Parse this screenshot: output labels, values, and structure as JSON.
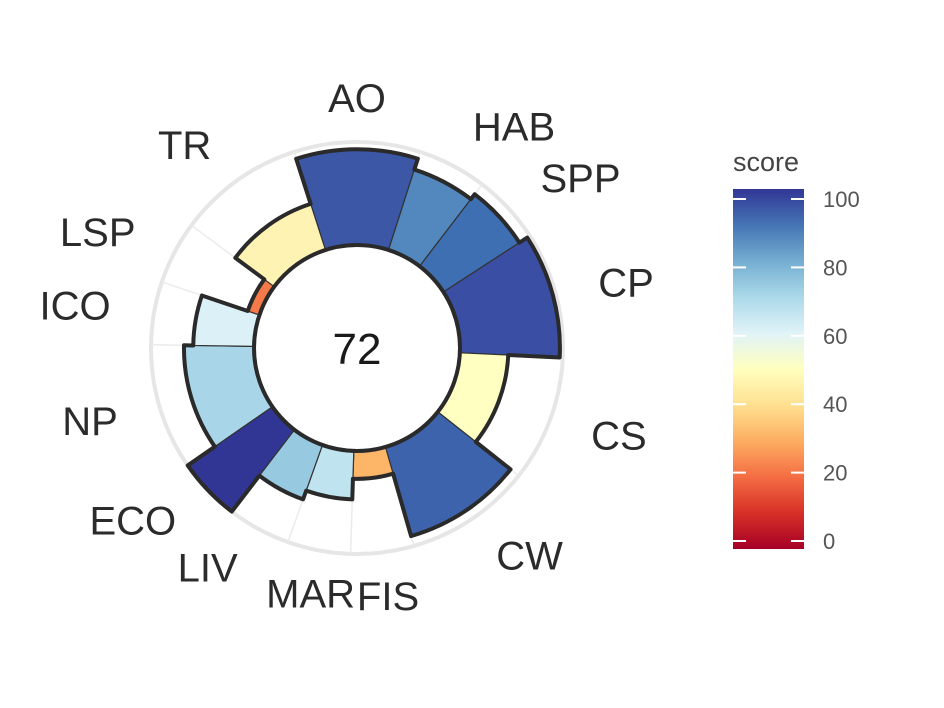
{
  "chart_data": {
    "type": "flower",
    "center_label": "72",
    "max_score": 100,
    "petals": [
      {
        "goal": "AO",
        "score": 93,
        "weight": 1.0,
        "color": "#3b57a6"
      },
      {
        "goal": "HAB",
        "score": 82,
        "weight": 0.55,
        "color": "#5388bf"
      },
      {
        "goal": "SPP",
        "score": 88,
        "weight": 0.55,
        "color": "#3f6fb3"
      },
      {
        "goal": "CP",
        "score": 97,
        "weight": 1.0,
        "color": "#3a4fa3"
      },
      {
        "goal": "CS",
        "score": 47,
        "weight": 1.0,
        "color": "#feffc0"
      },
      {
        "goal": "CW",
        "score": 90,
        "weight": 1.0,
        "color": "#3e63ad"
      },
      {
        "goal": "FIS",
        "score": 27,
        "weight": 0.5,
        "color": "#fdb567"
      },
      {
        "goal": "MAR",
        "score": 47,
        "weight": 0.5,
        "color": "#bfe4ef"
      },
      {
        "goal": "LIV",
        "score": 56,
        "weight": 0.5,
        "color": "#97c9e1"
      },
      {
        "goal": "ECO",
        "score": 100,
        "weight": 0.5,
        "color": "#313695"
      },
      {
        "goal": "NP",
        "score": 68,
        "weight": 1.0,
        "color": "#a8d6e8"
      },
      {
        "goal": "ICO",
        "score": 59,
        "weight": 0.5,
        "color": "#dbf0f7"
      },
      {
        "goal": "LSP",
        "score": 12,
        "weight": 0.5,
        "color": "#f67a49"
      },
      {
        "goal": "TR",
        "score": 47,
        "weight": 1.0,
        "color": "#fef3b2"
      }
    ],
    "legend": {
      "title": "score",
      "ticks": [
        0,
        20,
        40,
        60,
        80,
        100
      ],
      "colors": [
        "#a50026",
        "#d73027",
        "#f46d43",
        "#fdae61",
        "#fee090",
        "#ffffbf",
        "#e0f3f8",
        "#abd9e9",
        "#74add1",
        "#4575b4",
        "#313695"
      ]
    }
  }
}
